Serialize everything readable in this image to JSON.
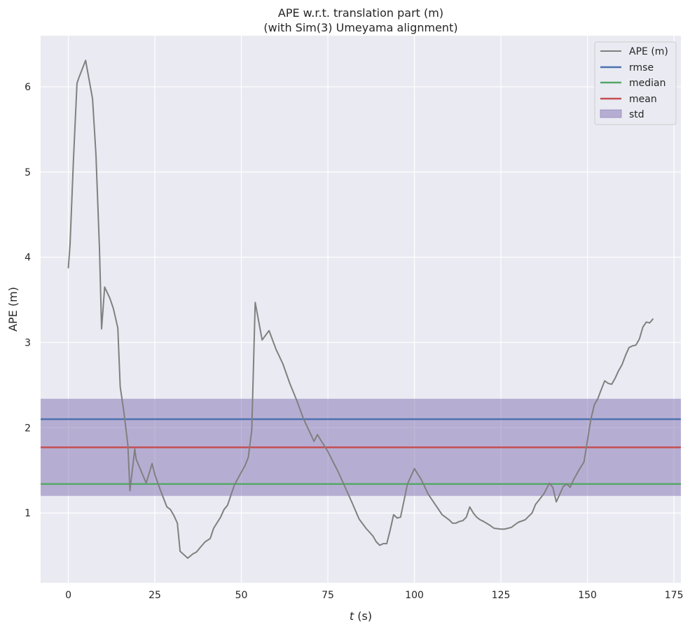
{
  "chart_data": {
    "type": "line",
    "title": "APE w.r.t. translation part (m)",
    "subtitle": "(with Sim(3) Umeyama alignment)",
    "xlabel_italic": "t",
    "xlabel_rest": " (s)",
    "ylabel": "APE (m)",
    "xlim": [
      -8,
      177
    ],
    "ylim": [
      0.18,
      6.6
    ],
    "xticks": [
      0,
      25,
      50,
      75,
      100,
      125,
      150,
      175
    ],
    "yticks": [
      1,
      2,
      3,
      4,
      5,
      6
    ],
    "grid": true,
    "legend_position": "top-right",
    "colors": {
      "background": "#eaeaf2",
      "grid": "#ffffff",
      "ape": "#808080",
      "rmse": "#4c72b0",
      "median": "#55a868",
      "mean": "#c44e52",
      "std": "#8172b2"
    },
    "series": [
      {
        "name": "APE (m)",
        "x": [
          0,
          0.5,
          1.5,
          2.5,
          3,
          5,
          7,
          8,
          9,
          9.6,
          10.5,
          12,
          13,
          14.3,
          15,
          16,
          17.2,
          17.8,
          19.2,
          19.6,
          22.5,
          24.2,
          25,
          26.5,
          28.5,
          29.5,
          30.5,
          31.5,
          32.3,
          34.5,
          36,
          37,
          38,
          39.5,
          41,
          42,
          44,
          45,
          46,
          47,
          48,
          50,
          51,
          52,
          53,
          54,
          56,
          58,
          60,
          62,
          64,
          66,
          68,
          69.5,
          71,
          72,
          73,
          75,
          78,
          80,
          82,
          84,
          86,
          88,
          89,
          90,
          91,
          92,
          93,
          94,
          95,
          96,
          98,
          100,
          102,
          104,
          106,
          108,
          110,
          111,
          112,
          113,
          114,
          115,
          116,
          117,
          118,
          119,
          120,
          122,
          123,
          125,
          126,
          127,
          128,
          130,
          132,
          134,
          135,
          136,
          137.5,
          139,
          140,
          141,
          142,
          143,
          144,
          145,
          146,
          147.5,
          149,
          150,
          151,
          152,
          153,
          154,
          155,
          156,
          157,
          158,
          159,
          160,
          161,
          162,
          163,
          164,
          165,
          166,
          167,
          168,
          169
        ],
        "values": [
          3.87,
          4.15,
          5.15,
          6.04,
          6.1,
          6.31,
          5.86,
          5.2,
          4.1,
          3.16,
          3.65,
          3.52,
          3.4,
          3.17,
          2.48,
          2.2,
          1.8,
          1.26,
          1.75,
          1.63,
          1.35,
          1.58,
          1.45,
          1.28,
          1.07,
          1.04,
          0.97,
          0.88,
          0.55,
          0.47,
          0.52,
          0.54,
          0.59,
          0.66,
          0.7,
          0.82,
          0.95,
          1.04,
          1.09,
          1.21,
          1.33,
          1.48,
          1.55,
          1.65,
          1.97,
          3.47,
          3.03,
          3.14,
          2.92,
          2.75,
          2.52,
          2.32,
          2.1,
          1.97,
          1.84,
          1.92,
          1.85,
          1.72,
          1.48,
          1.3,
          1.12,
          0.93,
          0.82,
          0.73,
          0.66,
          0.62,
          0.64,
          0.64,
          0.8,
          0.98,
          0.94,
          0.95,
          1.34,
          1.52,
          1.39,
          1.22,
          1.1,
          0.98,
          0.92,
          0.88,
          0.88,
          0.9,
          0.91,
          0.95,
          1.07,
          1.0,
          0.95,
          0.92,
          0.9,
          0.85,
          0.82,
          0.81,
          0.81,
          0.82,
          0.83,
          0.89,
          0.92,
          1.0,
          1.1,
          1.15,
          1.23,
          1.35,
          1.3,
          1.13,
          1.22,
          1.31,
          1.34,
          1.3,
          1.39,
          1.5,
          1.6,
          1.85,
          2.1,
          2.27,
          2.34,
          2.45,
          2.55,
          2.52,
          2.51,
          2.58,
          2.67,
          2.74,
          2.85,
          2.94,
          2.96,
          2.97,
          3.04,
          3.18,
          3.24,
          3.23,
          3.28
        ]
      },
      {
        "name": "rmse",
        "value": 2.1
      },
      {
        "name": "median",
        "value": 1.34
      },
      {
        "name": "mean",
        "value": 1.77
      },
      {
        "name": "std",
        "range": [
          1.2,
          2.34
        ]
      }
    ]
  }
}
